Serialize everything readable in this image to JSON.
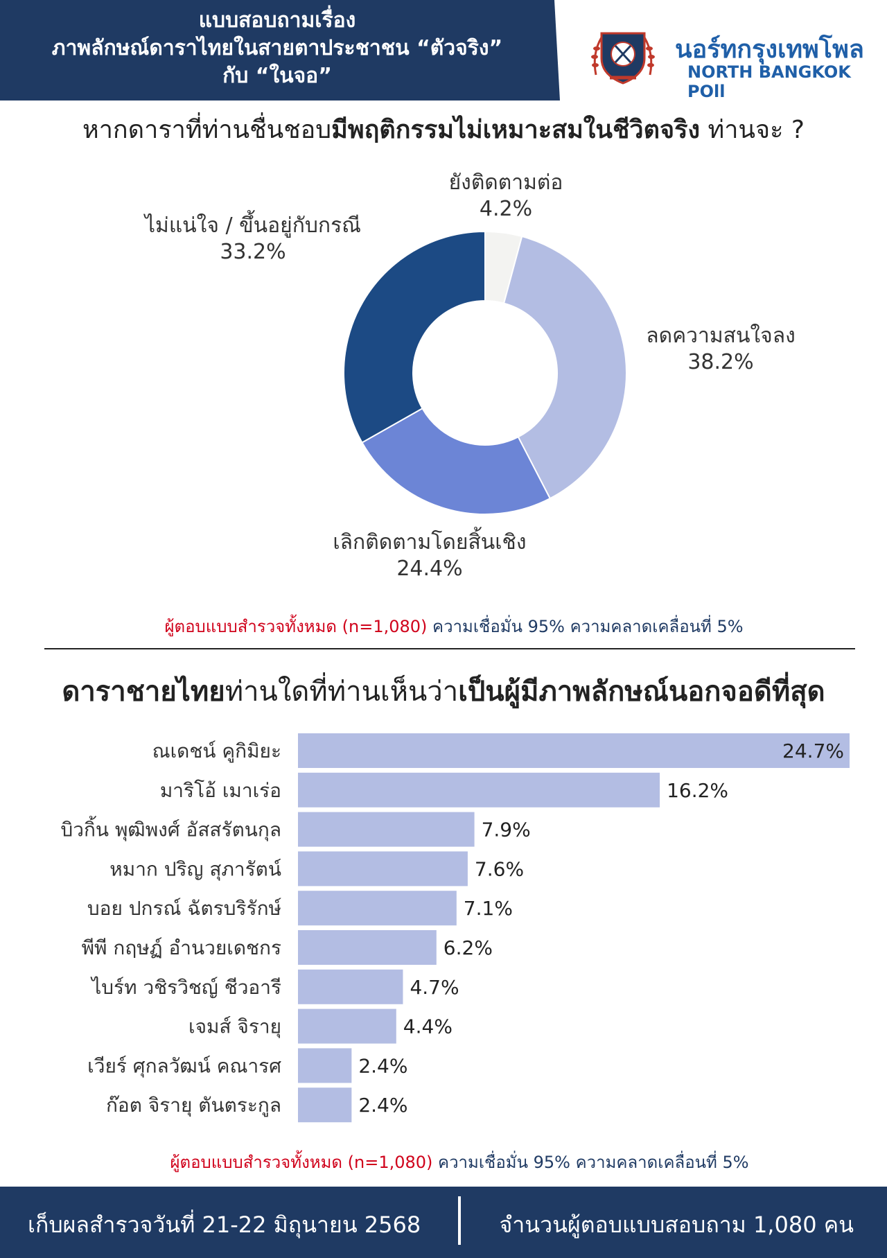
{
  "header": {
    "title_lines": [
      "แบบสอบถามเรื่อง",
      "ภาพลักษณ์ดาราไทยในสายตาประชาชน “ตัวจริง”",
      "กับ “ในจอ”"
    ],
    "brand_th": "นอร์ทกรุงเทพโพล",
    "brand_en": "NORTH BANGKOK POll",
    "colors": {
      "panel": "#1f3a63",
      "brand": "#1f5fa8"
    }
  },
  "question1": {
    "pre": "หากดาราที่ท่านชื่นชอบ",
    "bold": "มีพฤติกรรมไม่เหมาะสมในชีวิตจริง",
    "post": " ท่านจะ ?"
  },
  "note": {
    "red": "ผู้ตอบแบบสำรวจทั้งหมด (n=1,080)",
    "rest": " ความเชื่อมั่น 95% ความคลาดเคลื่อนที่ 5%"
  },
  "question2": {
    "bold1": "ดาราชายไทย",
    "mid": "ท่านใดที่ท่านเห็นว่า",
    "bold2": "เป็นผู้มีภาพลักษณ์นอกจอดีที่สุด"
  },
  "footer": {
    "date": "เก็บผลสำรวจวันที่ 21-22 มิถุนายน 2568",
    "count": "จำนวนผู้ตอบแบบสอบถาม 1,080 คน"
  },
  "chart_data": [
    {
      "type": "pie",
      "style": "donut",
      "slices": [
        {
          "label": "ยังติดตามต่อ",
          "value": 4.2,
          "display": "4.2%",
          "color": "#f3f3f1"
        },
        {
          "label": "ลดความสนใจลง",
          "value": 38.2,
          "display": "38.2%",
          "color": "#b3bde3"
        },
        {
          "label": "เลิกติดตามโดยสิ้นเชิง",
          "value": 24.4,
          "display": "24.4%",
          "color": "#6c85d6"
        },
        {
          "label": "ไม่แน่ใจ / ขึ้นอยู่กับกรณี",
          "value": 33.2,
          "display": "33.2%",
          "color": "#1c4a84"
        }
      ]
    },
    {
      "type": "bar",
      "orientation": "horizontal",
      "bar_color": "#b3bde3",
      "categories": [
        "ณเดชน์ คูกิมิยะ",
        "มาริโอ้ เมาเร่อ",
        "บิวกิ้น พุฒิพงศ์ อัสสรัตนกุล",
        "หมาก ปริญ สุภารัตน์",
        "บอย ปกรณ์ ฉัตรบริรักษ์",
        "พีพี กฤษฏ์ อำนวยเดชกร",
        "ไบร์ท วชิรวิชญ์ ชีวอารี",
        "เจมส์ จิรายุ",
        "เวียร์ ศุกลวัฒน์ คณารศ",
        "ก๊อต จิรายุ ตันตระกูล"
      ],
      "values": [
        24.7,
        16.2,
        7.9,
        7.6,
        7.1,
        6.2,
        4.7,
        4.4,
        2.4,
        2.4
      ],
      "value_labels": [
        "24.7%",
        "16.2%",
        "7.9%",
        "7.6%",
        "7.1%",
        "6.2%",
        "4.7%",
        "4.4%",
        "2.4%",
        "2.4%"
      ]
    }
  ]
}
